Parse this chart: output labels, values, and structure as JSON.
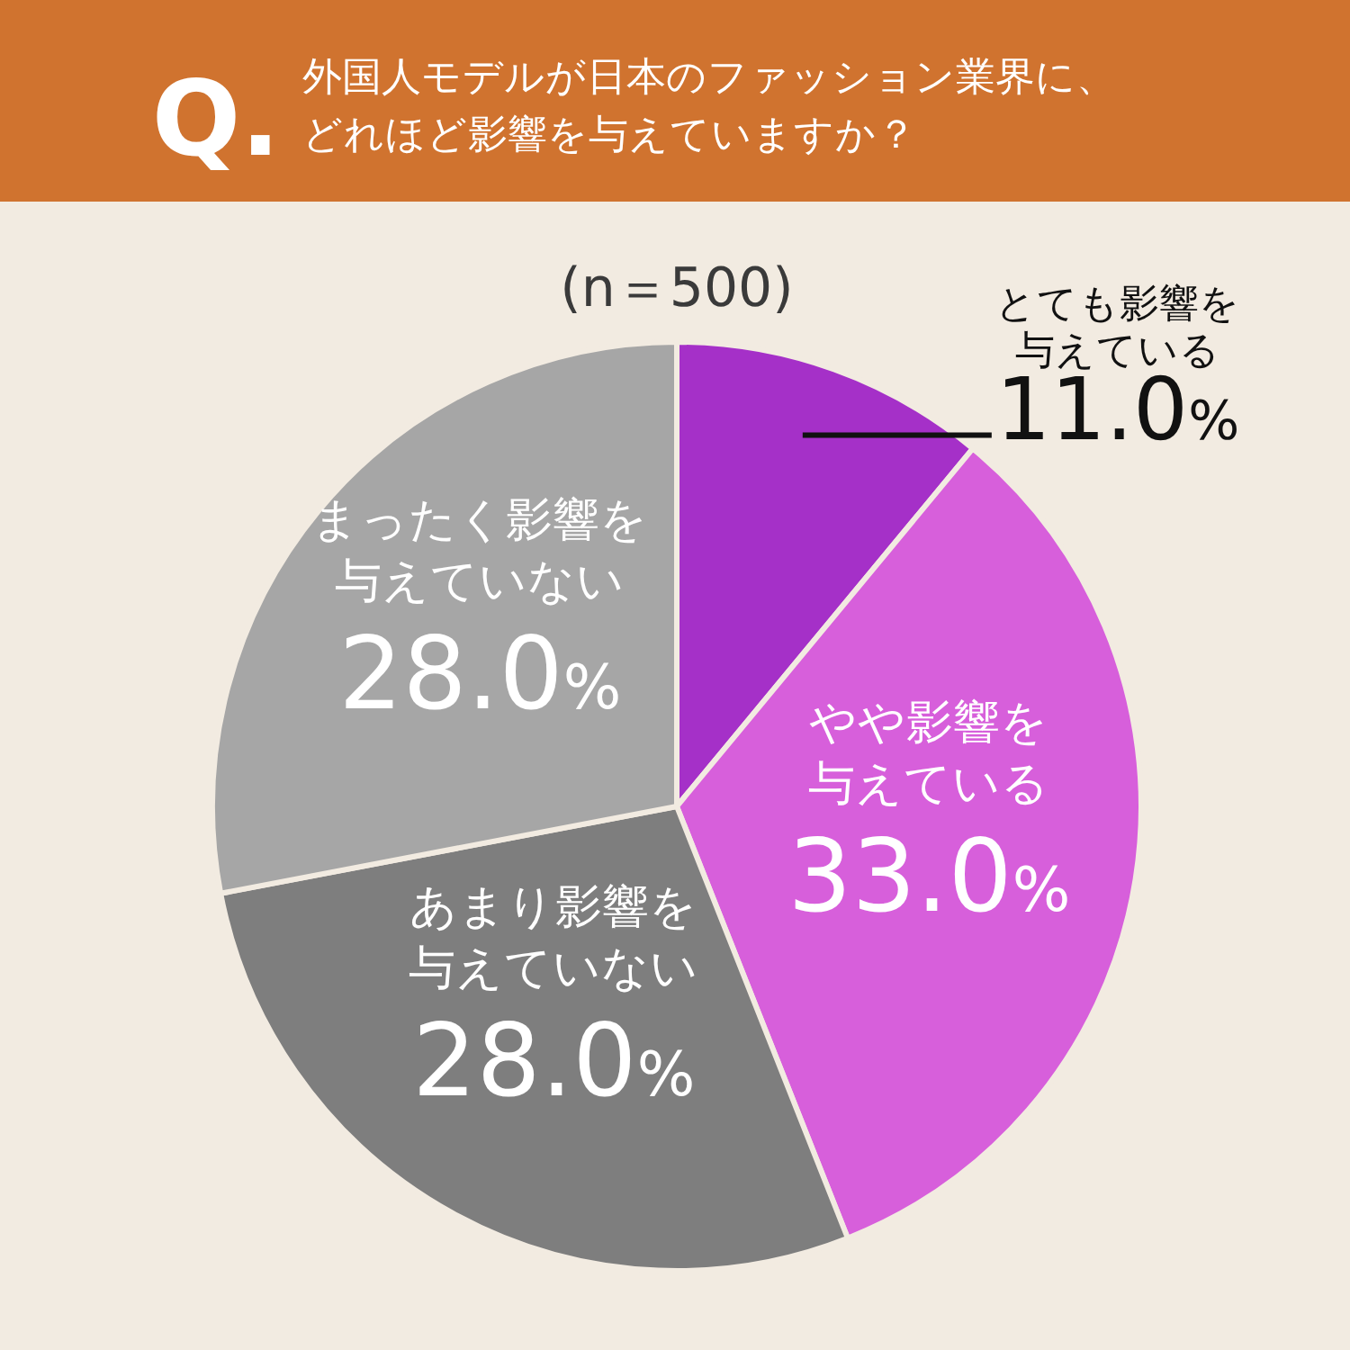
{
  "chart_data": {
    "type": "pie",
    "title": "外国人モデルが日本のファッション業界に、どれほど影響を与えていますか？",
    "subtitle": "(n＝500)",
    "annotations": [
      "Q."
    ],
    "categories": [
      "とても影響を与えている",
      "やや影響を与えている",
      "あまり影響を与えていない",
      "まったく影響を与えていない"
    ],
    "values": [
      11.0,
      33.0,
      28.0,
      28.0
    ],
    "value_labels": [
      "11.0%",
      "33.0%",
      "28.0%",
      "28.0%"
    ],
    "colors": [
      "#a530c8",
      "#d75fdb",
      "#7e7e7e",
      "#a6a6a6"
    ]
  }
}
